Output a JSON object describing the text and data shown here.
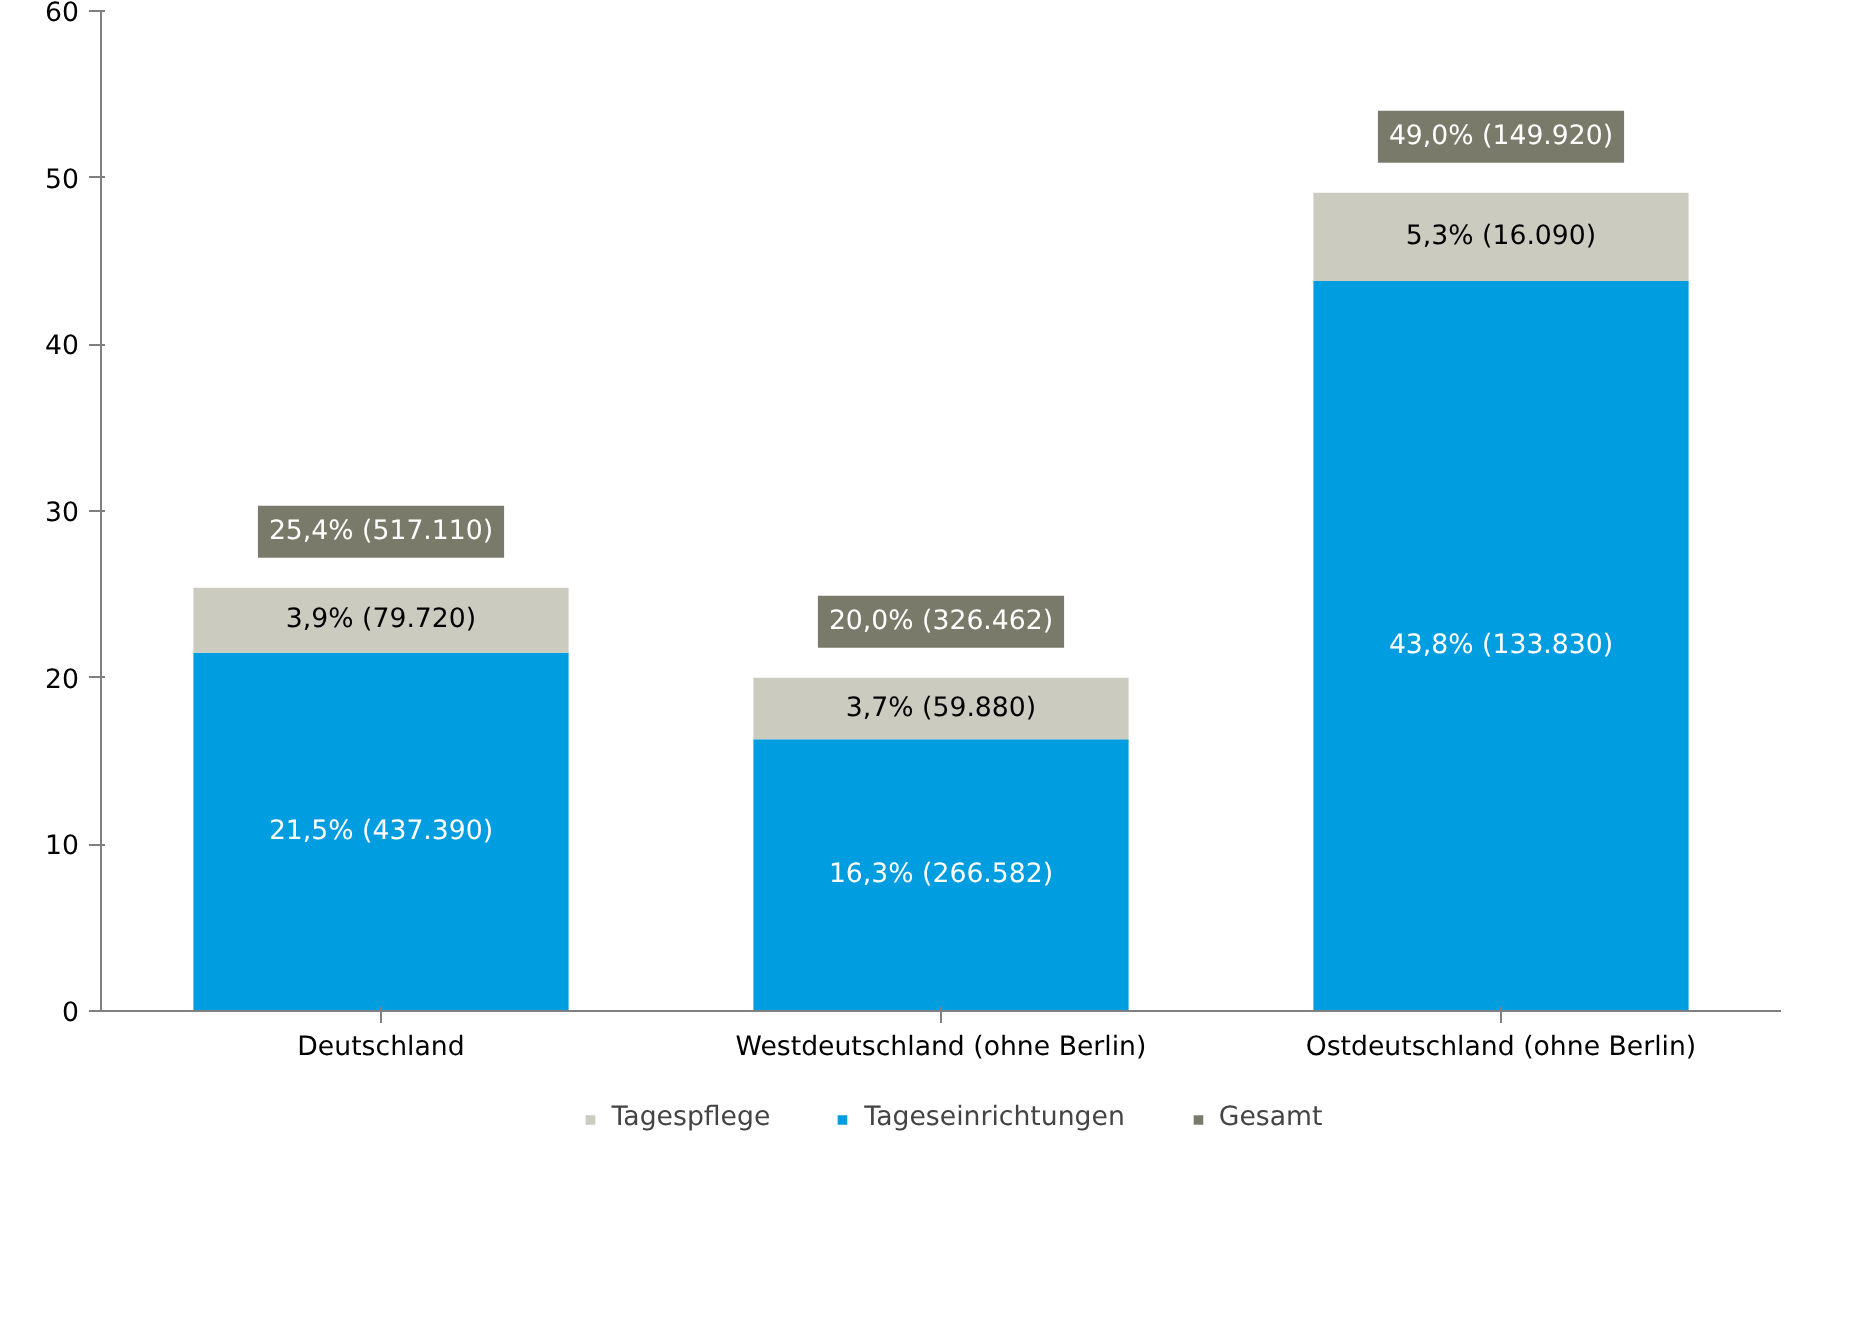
{
  "chart_data": {
    "type": "bar",
    "stacked": true,
    "categories": [
      "Deutschland",
      "Westdeutschland (ohne Berlin)",
      "Ostdeutschland (ohne Berlin)"
    ],
    "series": [
      {
        "name": "Tageseinrichtungen",
        "color": "#009ee0",
        "values": [
          21.5,
          16.3,
          43.8
        ],
        "value_labels": [
          "21,5% (437.390)",
          "16,3% (266.582)",
          "43,8% (133.830)"
        ]
      },
      {
        "name": "Tagespflege",
        "color": "#cccbbf",
        "values": [
          3.9,
          3.7,
          5.3
        ],
        "value_labels": [
          "3,9% (79.720)",
          "3,7% (59.880)",
          "5,3% (16.090)"
        ]
      },
      {
        "name": "Gesamt",
        "color": "#7a7a6a",
        "values": [
          null,
          null,
          null
        ]
      }
    ],
    "totals": [
      "25,4% (517.110)",
      "20,0% (326.462)",
      "49,0% (149.920)"
    ],
    "ylim": [
      0,
      60
    ],
    "yticks": [
      0,
      10,
      20,
      30,
      40,
      50,
      60
    ],
    "grid": false,
    "legend": "bottom"
  }
}
